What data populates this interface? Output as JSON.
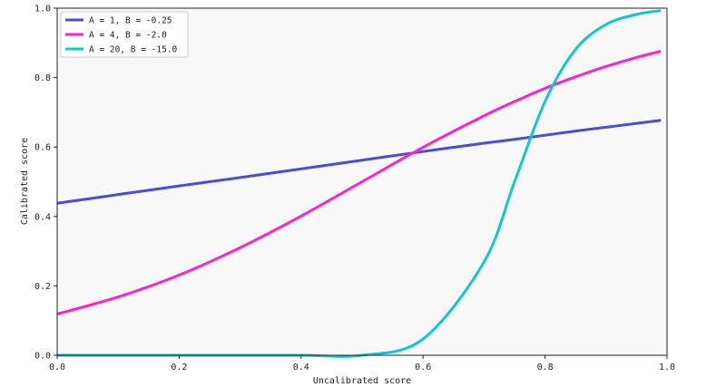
{
  "chart_data": {
    "type": "line",
    "title": "",
    "xlabel": "Uncalibrated score",
    "ylabel": "Calibrated score",
    "xlim": [
      0.0,
      1.0
    ],
    "ylim": [
      0.0,
      1.0
    ],
    "xticks": [
      "0.0",
      "0.2",
      "0.4",
      "0.6",
      "0.8",
      "1.0"
    ],
    "yticks": [
      "0.0",
      "0.2",
      "0.4",
      "0.6",
      "0.8",
      "1.0"
    ],
    "grid": false,
    "legend_position": "top-left",
    "x": [
      0.0,
      0.1,
      0.2,
      0.3,
      0.4,
      0.5,
      0.6,
      0.7,
      0.75,
      0.8,
      0.85,
      0.9,
      0.95,
      0.99
    ],
    "series": [
      {
        "name": "A = 1, B = -0.25",
        "color": "#4b4bdc",
        "values": [
          0.438,
          0.463,
          0.488,
          0.512,
          0.537,
          0.562,
          0.587,
          0.611,
          0.622,
          0.634,
          0.646,
          0.657,
          0.668,
          0.677
        ]
      },
      {
        "name": "A = 4, B = -2.0",
        "color": "#ff22cc",
        "values": [
          0.119,
          0.168,
          0.231,
          0.31,
          0.401,
          0.5,
          0.599,
          0.69,
          0.731,
          0.769,
          0.802,
          0.832,
          0.858,
          0.876
        ]
      },
      {
        "name": "A = 20, B = -15.0",
        "color": "#11c8c8",
        "values": [
          0.0,
          0.0,
          0.0,
          0.0,
          0.0,
          0.0,
          0.047,
          0.269,
          0.5,
          0.731,
          0.881,
          0.953,
          0.982,
          0.993
        ]
      }
    ],
    "plot_background": "#f8f8f8"
  }
}
